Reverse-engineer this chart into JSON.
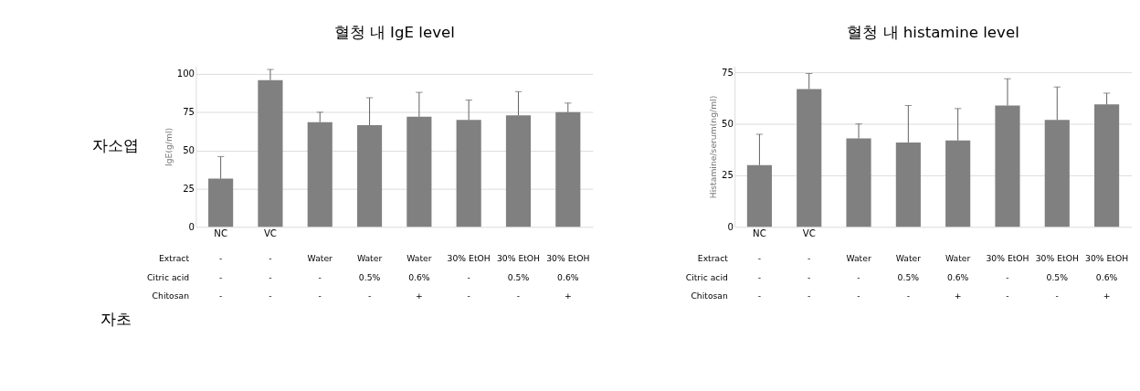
{
  "chart_data": [
    {
      "type": "bar",
      "title": "혈청 내 IgE level",
      "ylabel": "IgE(g/ml)",
      "categories": [
        "NC",
        "VC",
        null,
        null,
        null,
        null,
        null,
        null
      ],
      "values": [
        31.5,
        96,
        68.5,
        66.5,
        72,
        70,
        73,
        75
      ],
      "color": "#808080",
      "errors": [
        [
          31.5,
          46
        ],
        [
          96,
          103
        ],
        [
          68.5,
          75
        ],
        [
          66.5,
          84.5
        ],
        [
          72,
          88
        ],
        [
          70,
          83
        ],
        [
          73,
          88.5
        ],
        [
          75,
          81
        ]
      ],
      "ylim": [
        0,
        105
      ],
      "yticks": [
        0,
        25,
        50,
        75,
        100
      ],
      "grid": "y",
      "annotations": [
        "자소엽",
        "자초",
        "Extract",
        "-",
        "-",
        "Water",
        "Water",
        "Water",
        "30% EtOH",
        "30% EtOH",
        "30% EtOH",
        "Citric acid",
        "-",
        "-",
        "-",
        "0.5%",
        "0.6%",
        "-",
        "0.5%",
        "0.6%",
        "Chitosan",
        "-",
        "-",
        "-",
        "-",
        "+",
        "-",
        "-",
        "+"
      ]
    },
    {
      "type": "bar",
      "title": "혈청 내 histamine level",
      "ylabel": "Histamine/serum(ng/ml)",
      "categories": [
        "NC",
        "VC",
        null,
        null,
        null,
        null,
        null,
        null
      ],
      "values": [
        30,
        67,
        43,
        41,
        42,
        59,
        52,
        59.5
      ],
      "color": "#808080",
      "errors": [
        [
          30,
          45
        ],
        [
          67,
          74.5
        ],
        [
          43,
          50
        ],
        [
          41,
          59
        ],
        [
          42,
          57.5
        ],
        [
          59,
          72
        ],
        [
          52,
          68
        ],
        [
          59.5,
          65
        ]
      ],
      "ylim": [
        0,
        78
      ],
      "yticks": [
        0,
        25,
        50,
        75
      ],
      "grid": "y",
      "annotations": [
        "Extract",
        "-",
        "-",
        "Water",
        "Water",
        "Water",
        "30% EtOH",
        "30% EtOH",
        "30% EtOH",
        "Citric acid",
        "-",
        "-",
        "-",
        "0.5%",
        "0.6%",
        "-",
        "0.5%",
        "0.6%",
        "Chitosan",
        "-",
        "-",
        "-",
        "-",
        "+",
        "-",
        "-",
        "+"
      ]
    }
  ]
}
